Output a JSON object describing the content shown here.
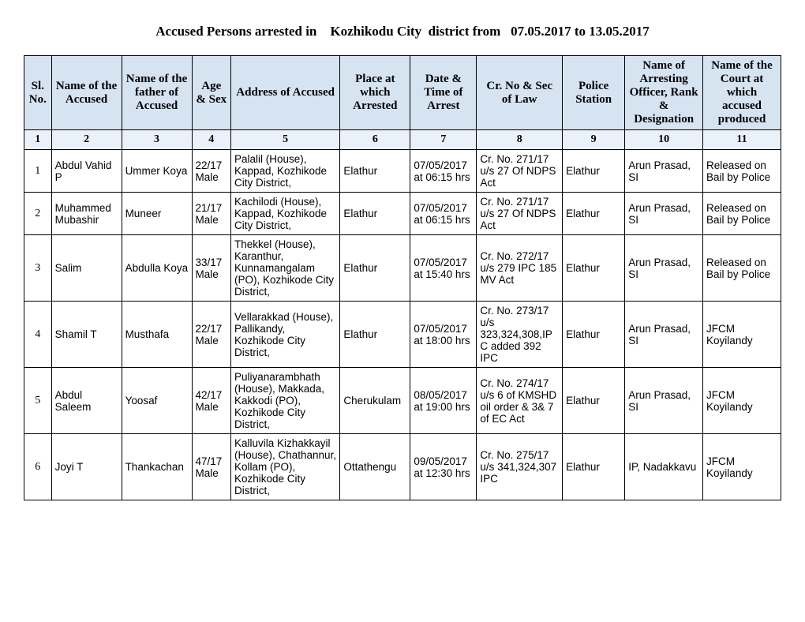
{
  "title": "Accused Persons arrested in    Kozhikodu City  district from   07.05.2017 to 13.05.2017",
  "headers": {
    "h1": "Sl. No.",
    "h2": "Name of the Accused",
    "h3": "Name of the father of Accused",
    "h4": "Age & Sex",
    "h5": "Address of Accused",
    "h6": "Place at which Arrested",
    "h7": "Date & Time of Arrest",
    "h8": "Cr. No & Sec of Law",
    "h9": "Police Station",
    "h10": "Name of Arresting Officer, Rank & Designation",
    "h11": "Name of the Court at which accused produced"
  },
  "numrow": {
    "n1": "1",
    "n2": "2",
    "n3": "3",
    "n4": "4",
    "n5": "5",
    "n6": "6",
    "n7": "7",
    "n8": "8",
    "n9": "9",
    "n10": "10",
    "n11": "11"
  },
  "rows": [
    {
      "sl": "1",
      "name": "Abdul Vahid P",
      "father": "Ummer Koya",
      "age": "22/17 Male",
      "address": "Palalil (House), Kappad, Kozhikode City District,",
      "place": "Elathur",
      "datetime": "07/05/2017 at  06:15 hrs",
      "crno": "Cr. No. 271/17 u/s 27 Of NDPS Act",
      "station": "Elathur",
      "officer": "Arun Prasad, SI",
      "court": "Released on Bail by Police"
    },
    {
      "sl": "2",
      "name": "Muhammed Mubashir",
      "father": "Muneer",
      "age": "21/17 Male",
      "address": "Kachilodi (House), Kappad, Kozhikode City District,",
      "place": "Elathur",
      "datetime": "07/05/2017 at  06:15 hrs",
      "crno": "Cr. No. 271/17 u/s 27 Of NDPS Act",
      "station": "Elathur",
      "officer": "Arun Prasad, SI",
      "court": "Released on Bail by Police"
    },
    {
      "sl": "3",
      "name": "Salim",
      "father": "Abdulla Koya",
      "age": "33/17 Male",
      "address": "Thekkel (House), Karanthur, Kunnamangalam (PO), Kozhikode City District,",
      "place": "Elathur",
      "datetime": "07/05/2017 at  15:40 hrs",
      "crno": "Cr. No. 272/17 u/s 279 IPC 185 MV Act",
      "station": "Elathur",
      "officer": "Arun Prasad, SI",
      "court": "Released on Bail by Police"
    },
    {
      "sl": "4",
      "name": "Shamil T",
      "father": "Musthafa",
      "age": "22/17 Male",
      "address": "Vellarakkad (House), Pallikandy, Kozhikode City District,",
      "place": "Elathur",
      "datetime": "07/05/2017 at  18:00 hrs",
      "crno": "Cr. No. 273/17 u/s 323,324,308,IPC added 392 IPC",
      "station": "Elathur",
      "officer": "Arun Prasad, SI",
      "court": "JFCM Koyilandy"
    },
    {
      "sl": "5",
      "name": "Abdul Saleem",
      "father": "Yoosaf",
      "age": "42/17 Male",
      "address": "Puliyanarambhath (House), Makkada, Kakkodi (PO), Kozhikode City District,",
      "place": "Cherukulam",
      "datetime": "08/05/2017 at  19:00 hrs",
      "crno": "Cr. No. 274/17 u/s 6 of KMSHD oil order & 3& 7 of EC Act",
      "station": "Elathur",
      "officer": "Arun Prasad, SI",
      "court": "JFCM Koyilandy"
    },
    {
      "sl": "6",
      "name": "Joyi T",
      "father": "Thankachan",
      "age": "47/17 Male",
      "address": "Kalluvila Kizhakkayil (House), Chathannur, Kollam (PO), Kozhikode City District,",
      "place": "Ottathengu",
      "datetime": "09/05/2017 at  12:30 hrs",
      "crno": "Cr. No. 275/17 u/s 341,324,307 IPC",
      "station": "Elathur",
      "officer": "IP, Nadakkavu",
      "court": "JFCM Koyilandy"
    }
  ]
}
